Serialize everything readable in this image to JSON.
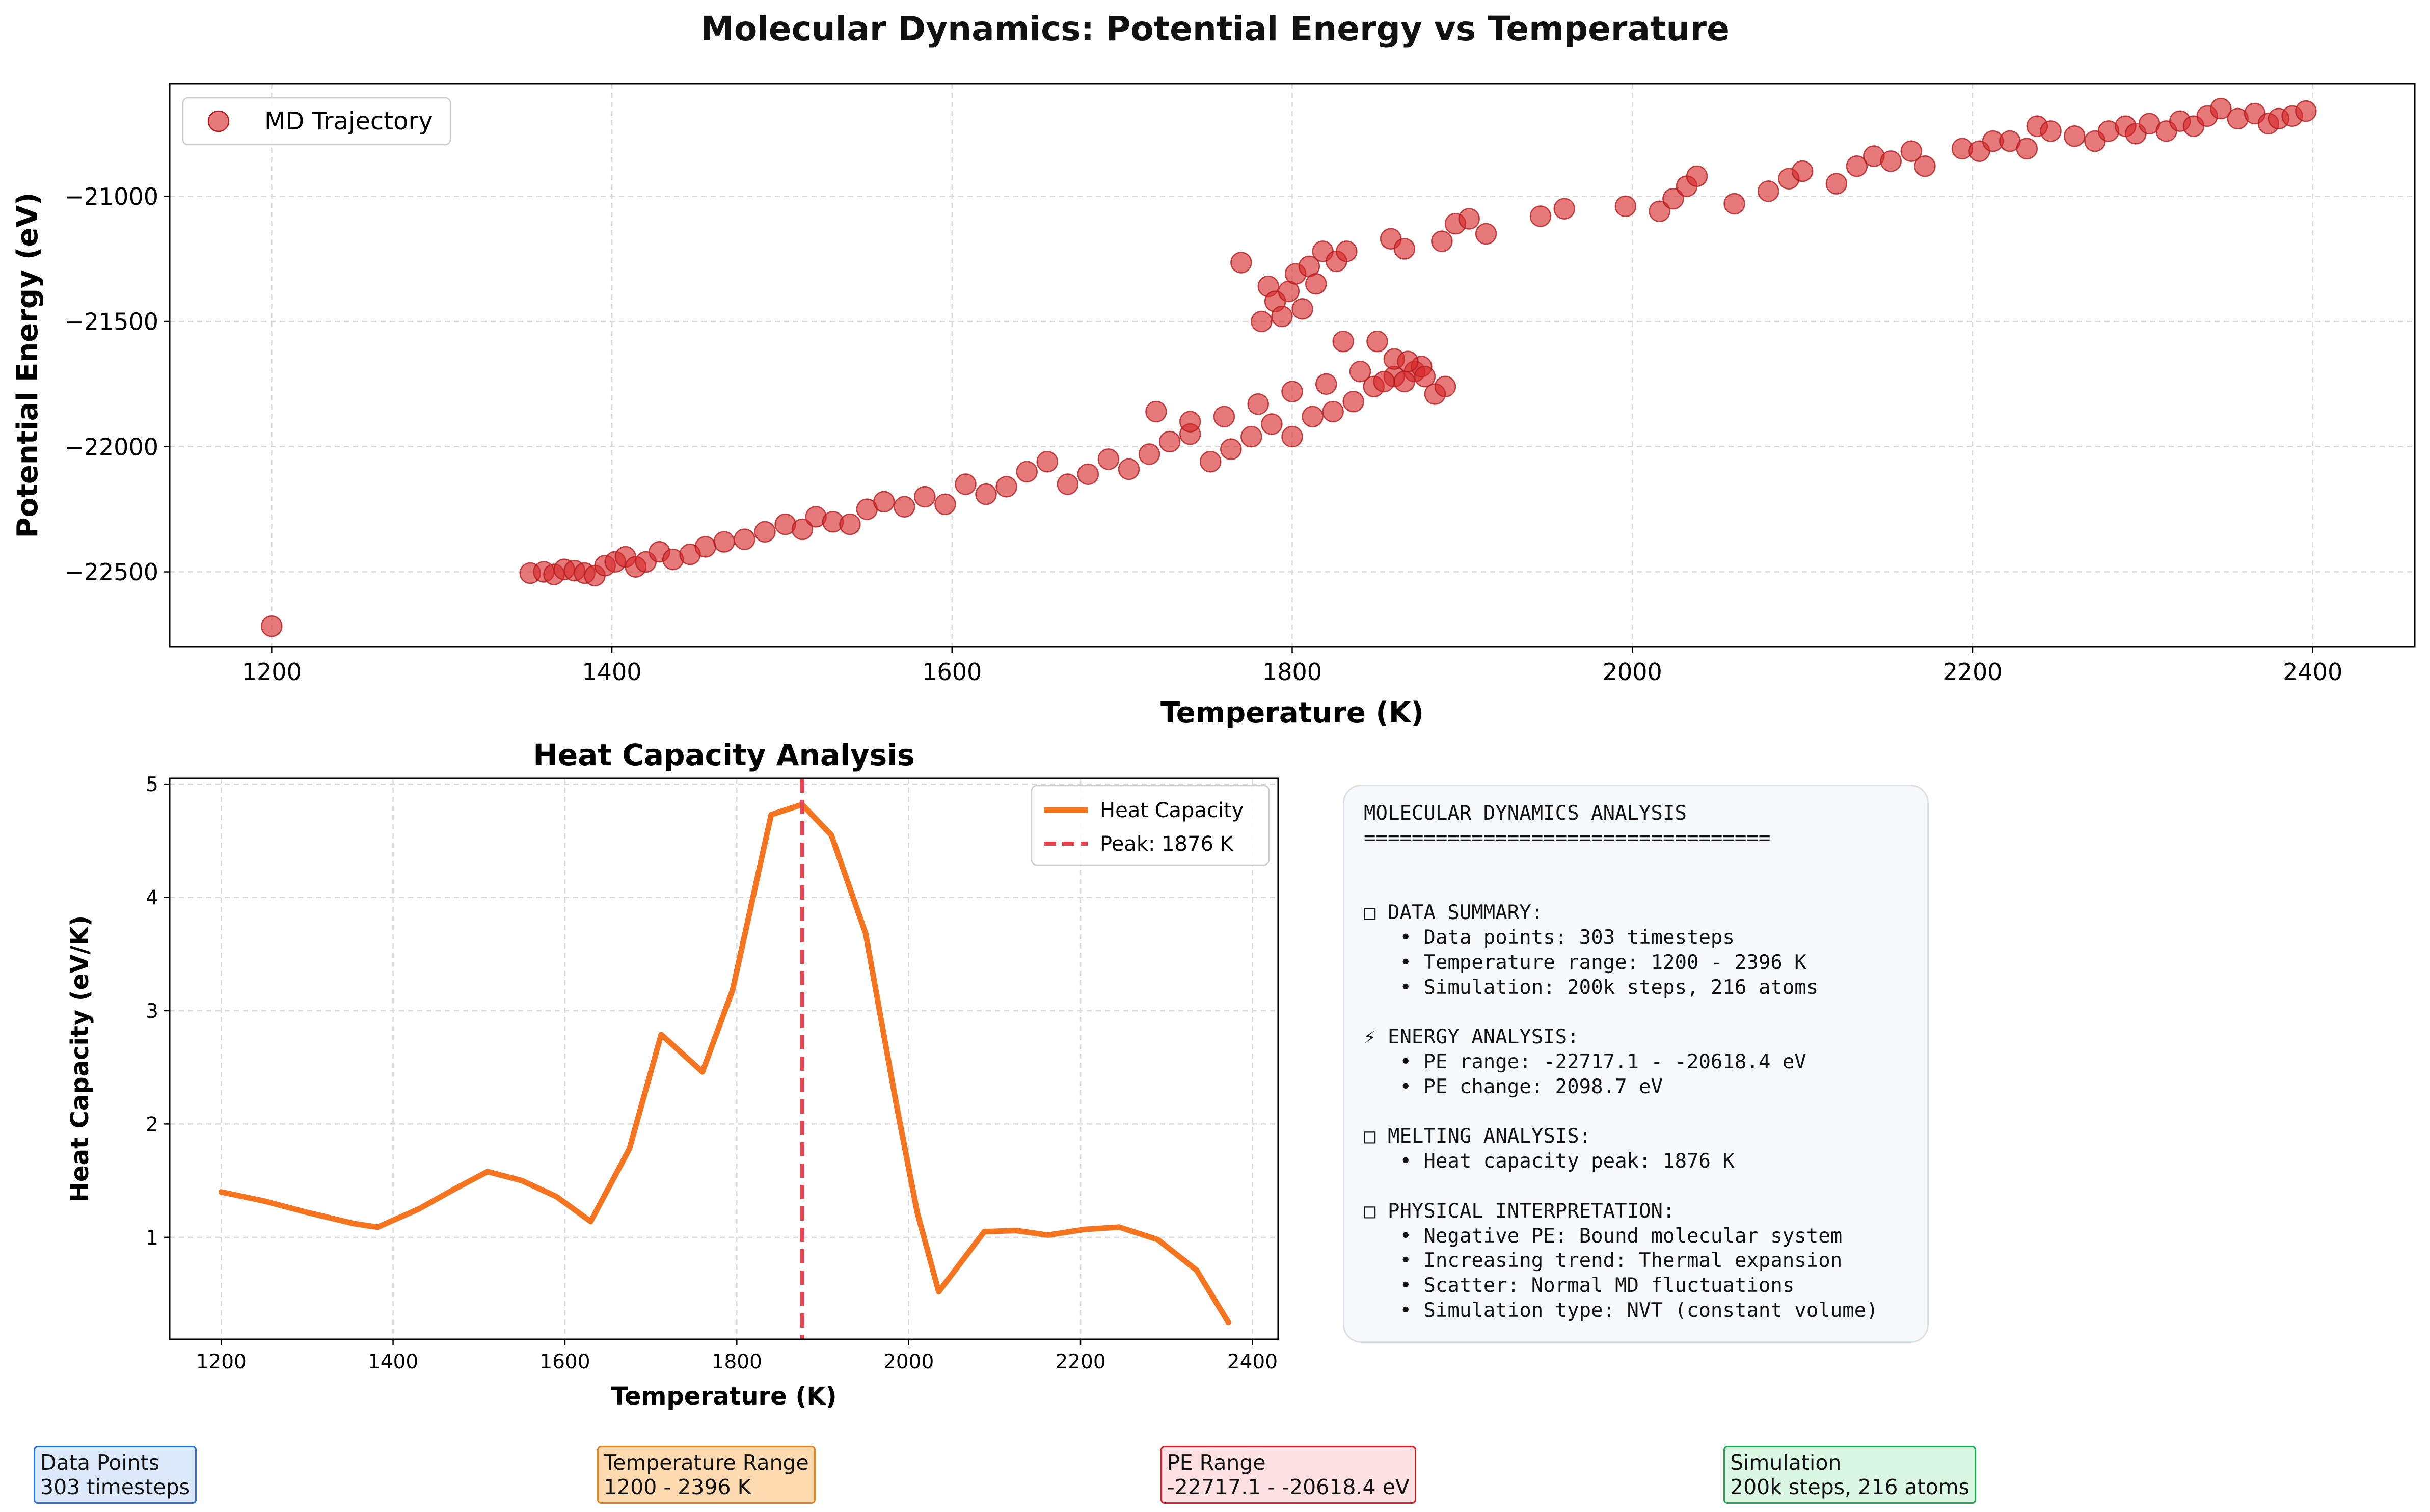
{
  "figure": {
    "title": "Molecular Dynamics: Potential Energy vs Temperature"
  },
  "colors": {
    "scatter": "#d62728",
    "line": "#f57420",
    "peak": "#e5434f"
  },
  "chart_data": [
    {
      "type": "scatter",
      "title": "",
      "xlabel": "Temperature (K)",
      "ylabel": "Potential Energy (eV)",
      "xlim": [
        1140,
        2460
      ],
      "ylim": [
        -22800,
        -20550
      ],
      "xticks": [
        1200,
        1400,
        1600,
        1800,
        2000,
        2200,
        2400
      ],
      "yticks": [
        -22500,
        -22000,
        -21500,
        -21000
      ],
      "ytick_labels": [
        "−22500",
        "−22000",
        "−21500",
        "−21000"
      ],
      "grid": true,
      "legend": {
        "position": "top-left",
        "entries": [
          "MD Trajectory"
        ]
      },
      "series": [
        {
          "name": "MD Trajectory",
          "points": [
            [
              1200,
              -22717
            ],
            [
              1352,
              -22505
            ],
            [
              1360,
              -22500
            ],
            [
              1366,
              -22510
            ],
            [
              1372,
              -22490
            ],
            [
              1378,
              -22495
            ],
            [
              1384,
              -22505
            ],
            [
              1390,
              -22515
            ],
            [
              1396,
              -22475
            ],
            [
              1402,
              -22460
            ],
            [
              1408,
              -22440
            ],
            [
              1414,
              -22480
            ],
            [
              1420,
              -22460
            ],
            [
              1428,
              -22420
            ],
            [
              1436,
              -22450
            ],
            [
              1446,
              -22430
            ],
            [
              1455,
              -22400
            ],
            [
              1466,
              -22380
            ],
            [
              1478,
              -22370
            ],
            [
              1490,
              -22340
            ],
            [
              1502,
              -22310
            ],
            [
              1512,
              -22330
            ],
            [
              1520,
              -22280
            ],
            [
              1530,
              -22300
            ],
            [
              1540,
              -22310
            ],
            [
              1550,
              -22250
            ],
            [
              1560,
              -22220
            ],
            [
              1572,
              -22240
            ],
            [
              1584,
              -22200
            ],
            [
              1596,
              -22230
            ],
            [
              1608,
              -22150
            ],
            [
              1620,
              -22190
            ],
            [
              1632,
              -22160
            ],
            [
              1644,
              -22100
            ],
            [
              1656,
              -22060
            ],
            [
              1668,
              -22150
            ],
            [
              1680,
              -22110
            ],
            [
              1692,
              -22050
            ],
            [
              1704,
              -22090
            ],
            [
              1716,
              -22030
            ],
            [
              1728,
              -21980
            ],
            [
              1740,
              -21950
            ],
            [
              1752,
              -22060
            ],
            [
              1764,
              -22010
            ],
            [
              1776,
              -21960
            ],
            [
              1788,
              -21910
            ],
            [
              1800,
              -21960
            ],
            [
              1812,
              -21880
            ],
            [
              1824,
              -21860
            ],
            [
              1836,
              -21820
            ],
            [
              1848,
              -21760
            ],
            [
              1860,
              -21720
            ],
            [
              1872,
              -21700
            ],
            [
              1884,
              -21790
            ],
            [
              1720,
              -21860
            ],
            [
              1740,
              -21900
            ],
            [
              1760,
              -21880
            ],
            [
              1780,
              -21830
            ],
            [
              1800,
              -21780
            ],
            [
              1820,
              -21750
            ],
            [
              1840,
              -21700
            ],
            [
              1860,
              -21650
            ],
            [
              1876,
              -21680
            ],
            [
              1890,
              -21760
            ],
            [
              1850,
              -21580
            ],
            [
              1830,
              -21580
            ],
            [
              1866,
              -21740
            ],
            [
              1878,
              -21720
            ],
            [
              1854,
              -21740
            ],
            [
              1868,
              -21660
            ],
            [
              1770,
              -21265
            ],
            [
              1782,
              -21500
            ],
            [
              1786,
              -21360
            ],
            [
              1790,
              -21420
            ],
            [
              1794,
              -21480
            ],
            [
              1798,
              -21380
            ],
            [
              1802,
              -21310
            ],
            [
              1806,
              -21450
            ],
            [
              1810,
              -21280
            ],
            [
              1814,
              -21350
            ],
            [
              1818,
              -21220
            ],
            [
              1826,
              -21260
            ],
            [
              1832,
              -21220
            ],
            [
              1858,
              -21170
            ],
            [
              1866,
              -21210
            ],
            [
              1888,
              -21180
            ],
            [
              1896,
              -21110
            ],
            [
              1904,
              -21090
            ],
            [
              1914,
              -21150
            ],
            [
              1946,
              -21080
            ],
            [
              1960,
              -21050
            ],
            [
              1996,
              -21040
            ],
            [
              2016,
              -21060
            ],
            [
              2024,
              -21010
            ],
            [
              2032,
              -20960
            ],
            [
              2038,
              -20920
            ],
            [
              2060,
              -21030
            ],
            [
              2080,
              -20980
            ],
            [
              2092,
              -20930
            ],
            [
              2100,
              -20900
            ],
            [
              2120,
              -20950
            ],
            [
              2132,
              -20880
            ],
            [
              2142,
              -20840
            ],
            [
              2152,
              -20860
            ],
            [
              2164,
              -20820
            ],
            [
              2172,
              -20880
            ],
            [
              2194,
              -20810
            ],
            [
              2204,
              -20820
            ],
            [
              2212,
              -20780
            ],
            [
              2222,
              -20780
            ],
            [
              2232,
              -20810
            ],
            [
              2238,
              -20720
            ],
            [
              2246,
              -20740
            ],
            [
              2260,
              -20760
            ],
            [
              2272,
              -20780
            ],
            [
              2280,
              -20740
            ],
            [
              2290,
              -20720
            ],
            [
              2296,
              -20750
            ],
            [
              2304,
              -20710
            ],
            [
              2314,
              -20740
            ],
            [
              2322,
              -20700
            ],
            [
              2330,
              -20720
            ],
            [
              2338,
              -20680
            ],
            [
              2346,
              -20650
            ],
            [
              2356,
              -20690
            ],
            [
              2366,
              -20670
            ],
            [
              2374,
              -20710
            ],
            [
              2380,
              -20690
            ],
            [
              2388,
              -20680
            ],
            [
              2396,
              -20660
            ]
          ]
        }
      ]
    },
    {
      "type": "line",
      "title": "Heat Capacity Analysis",
      "xlabel": "Temperature (K)",
      "ylabel": "Heat Capacity (eV/K)",
      "xlim": [
        1140,
        2430
      ],
      "ylim": [
        0.1,
        5.05
      ],
      "xticks": [
        1200,
        1400,
        1600,
        1800,
        2000,
        2200,
        2400
      ],
      "yticks": [
        1,
        2,
        3,
        4,
        5
      ],
      "grid": true,
      "legend": {
        "position": "top-right",
        "entries": [
          "Heat Capacity",
          "Peak: 1876 K"
        ]
      },
      "peak_x": 1876,
      "series": [
        {
          "name": "Heat Capacity",
          "x": [
            1200,
            1250,
            1300,
            1355,
            1382,
            1430,
            1470,
            1510,
            1550,
            1590,
            1630,
            1675,
            1712,
            1760,
            1795,
            1840,
            1876,
            1910,
            1950,
            1985,
            2010,
            2035,
            2088,
            2125,
            2162,
            2205,
            2245,
            2290,
            2335,
            2372
          ],
          "values": [
            1.4,
            1.32,
            1.22,
            1.12,
            1.09,
            1.25,
            1.42,
            1.58,
            1.5,
            1.36,
            1.14,
            1.78,
            2.79,
            2.46,
            3.18,
            4.73,
            4.82,
            4.55,
            3.68,
            2.2,
            1.22,
            0.52,
            1.05,
            1.06,
            1.02,
            1.07,
            1.09,
            0.98,
            0.71,
            0.25
          ]
        }
      ]
    }
  ],
  "summary": {
    "lines": [
      "MOLECULAR DYNAMICS ANALYSIS",
      "==================================",
      "",
      "",
      "□ DATA SUMMARY:",
      "   • Data points: 303 timesteps",
      "   • Temperature range: 1200 - 2396 K",
      "   • Simulation: 200k steps, 216 atoms",
      "",
      "⚡ ENERGY ANALYSIS:",
      "   • PE range: -22717.1 - -20618.4 eV",
      "   • PE change: 2098.7 eV",
      "",
      "□ MELTING ANALYSIS:",
      "   • Heat capacity peak: 1876 K",
      "",
      "□ PHYSICAL INTERPRETATION:",
      "   • Negative PE: Bound molecular system",
      "   • Increasing trend: Thermal expansion",
      "   • Scatter: Normal MD fluctuations",
      "   • Simulation type: NVT (constant volume)"
    ]
  },
  "stat_boxes": [
    {
      "label": "Data Points",
      "value": "303 timesteps",
      "bg": "#dce9fb",
      "border": "#2a6fd6"
    },
    {
      "label": "Temperature Range",
      "value": "1200 - 2396 K",
      "bg": "#fdd9b0",
      "border": "#e0832a"
    },
    {
      "label": "PE Range",
      "value": "-22717.1 - -20618.4 eV",
      "bg": "#fde0e2",
      "border": "#d8202f"
    },
    {
      "label": "Simulation",
      "value": "200k steps, 216 atoms",
      "bg": "#d9f7e3",
      "border": "#23a651"
    }
  ]
}
